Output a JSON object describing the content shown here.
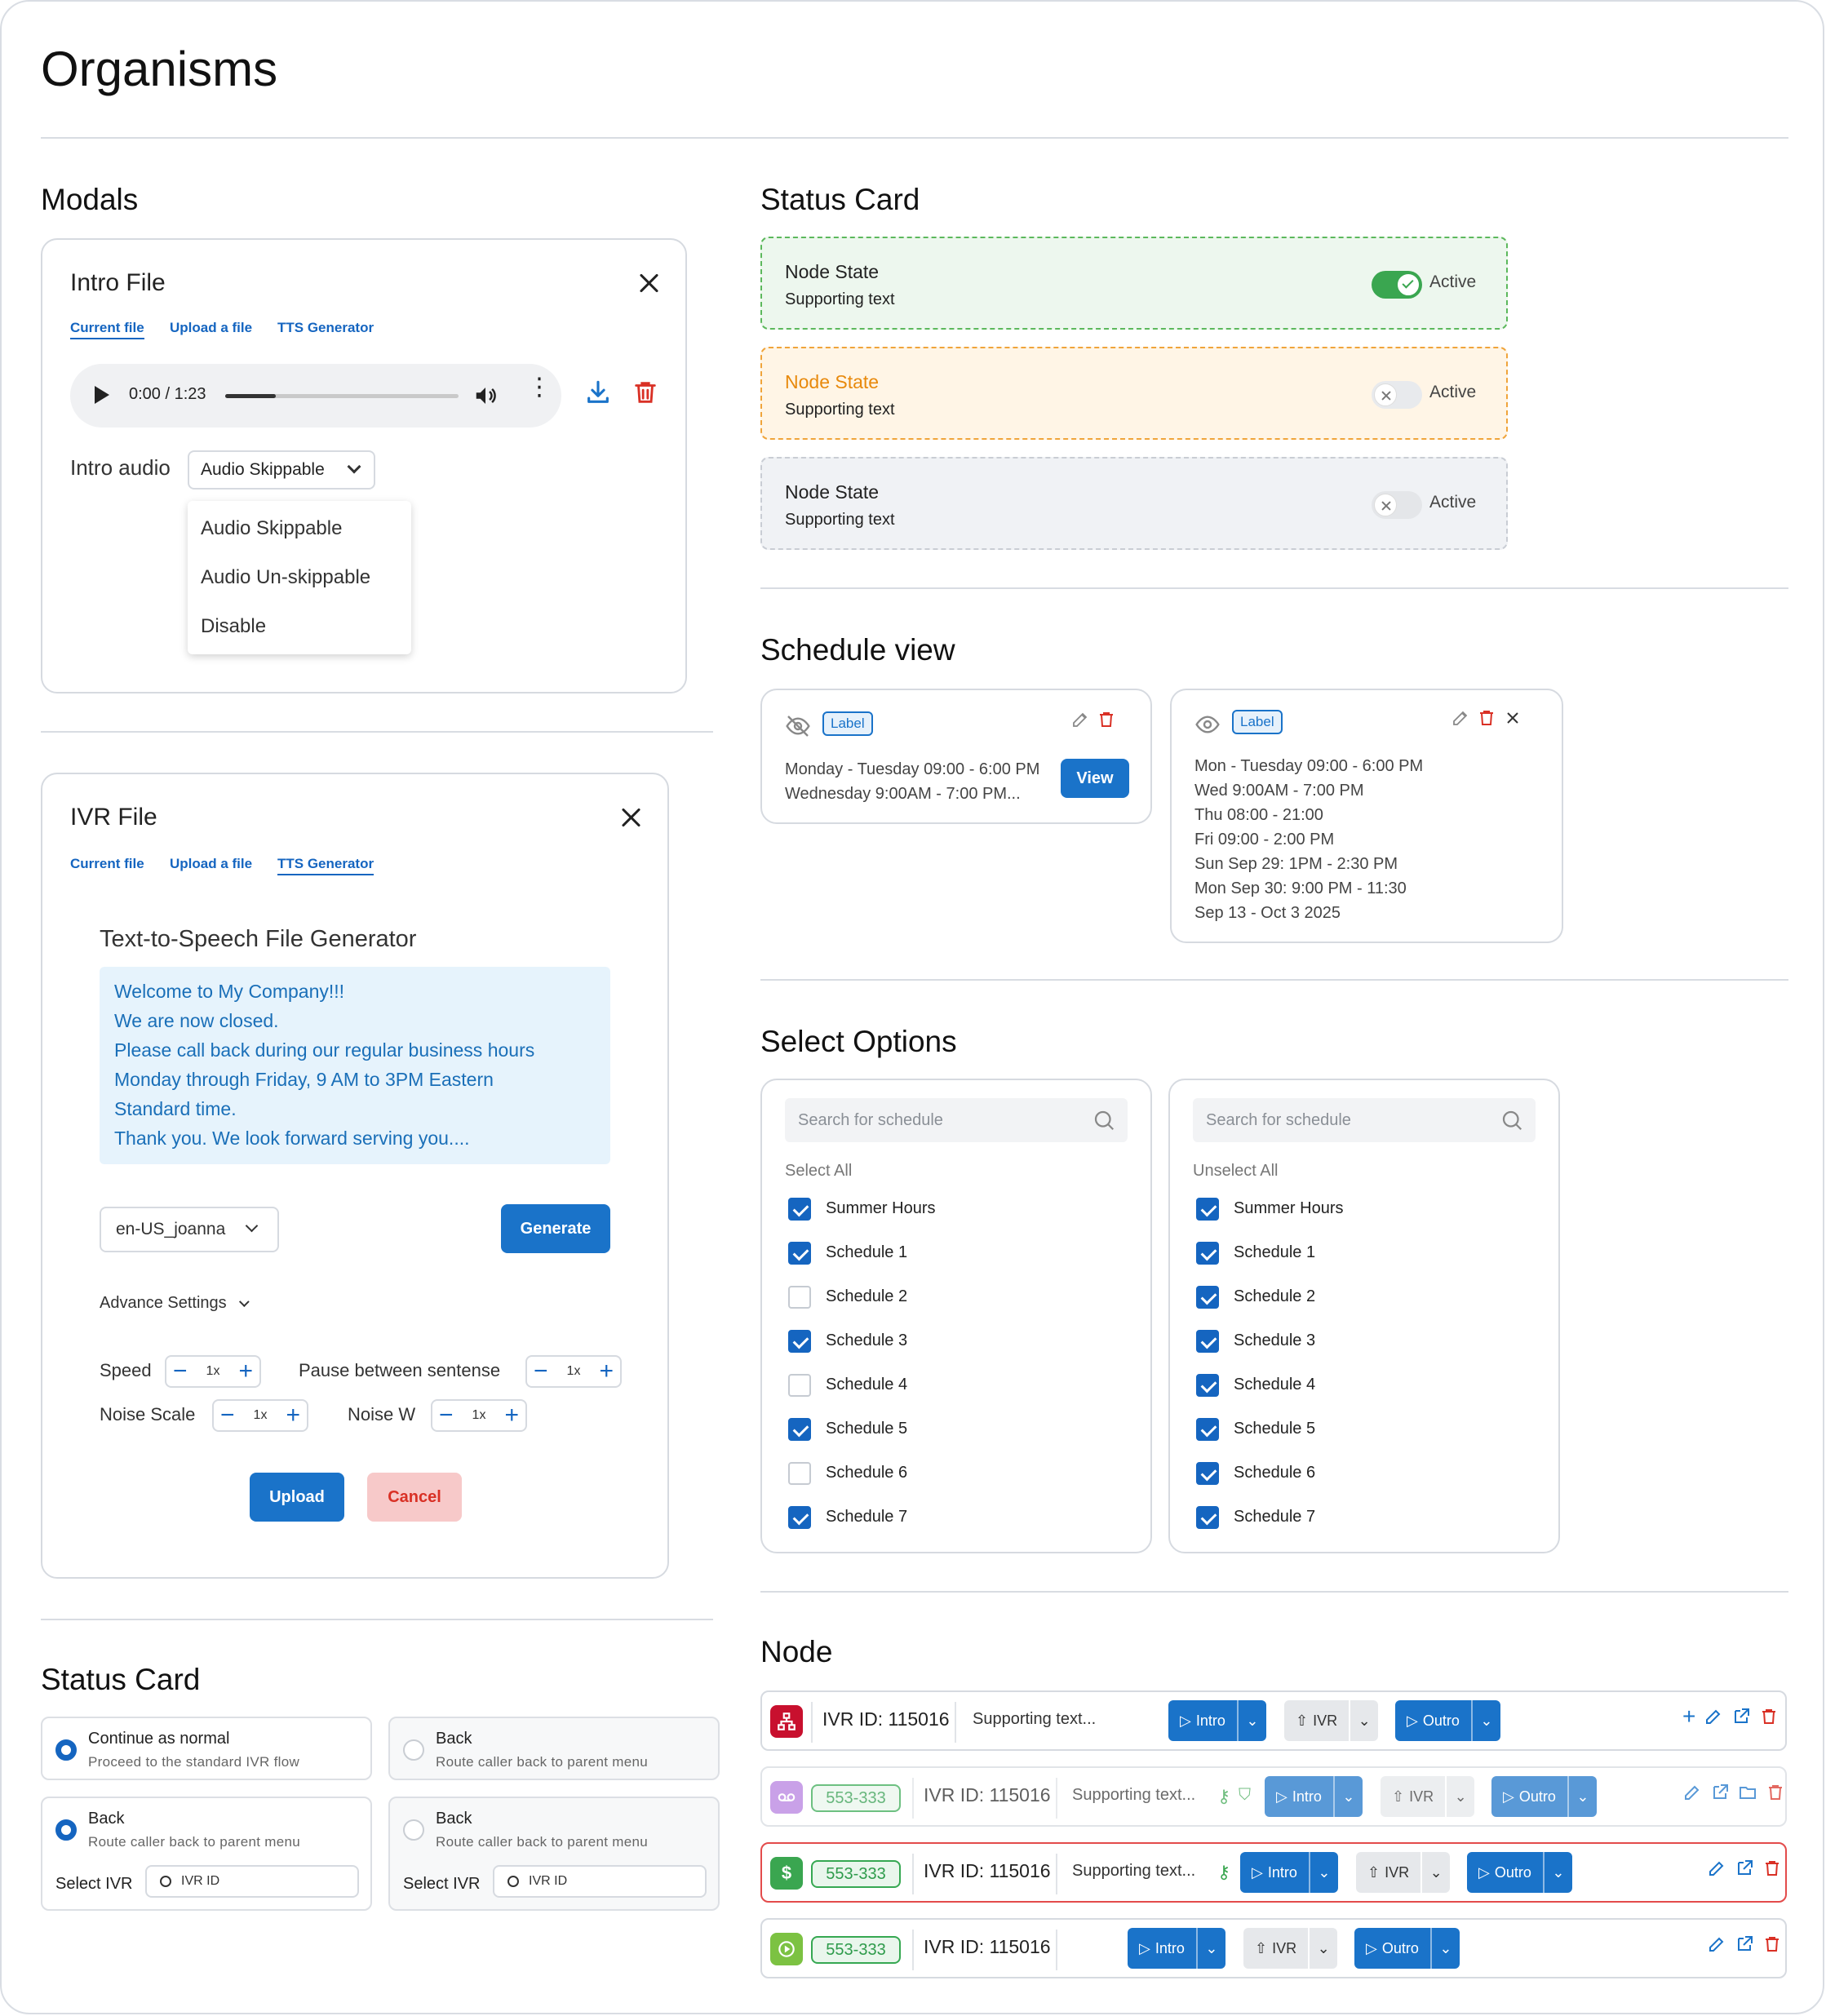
{
  "page_title": "Organisms",
  "sections": {
    "modals": "Modals",
    "status_card_right": "Status Card",
    "schedule_view": "Schedule view",
    "select_options": "Select Options",
    "status_card_left": "Status Card",
    "node": "Node"
  },
  "intro_modal": {
    "title": "Intro File",
    "tabs": [
      "Current file",
      "Upload a file",
      "TTS Generator"
    ],
    "audio_time": "0:00 / 1:23",
    "audio_label": "Intro audio",
    "audio_select": "Audio Skippable",
    "options": [
      "Audio Skippable",
      "Audio Un-skippable",
      "Disable"
    ]
  },
  "ivr_modal": {
    "title": "IVR File",
    "tabs": [
      "Current file",
      "Upload a file",
      "TTS Generator"
    ],
    "tts_title": "Text-to-Speech File Generator",
    "tts_lines": [
      "Welcome to My Company!!!",
      "We are now closed.",
      "Please call back during our regular business hours",
      "Monday through Friday, 9 AM to 3PM Eastern",
      "Standard time.",
      "Thank you. We look forward serving you...."
    ],
    "voice": "en-US_joanna",
    "generate": "Generate",
    "advance": "Advance Settings",
    "speed": "Speed",
    "pause": "Pause between sentense",
    "noise_scale": "Noise Scale",
    "noise_w": "Noise W",
    "step_value": "1x",
    "upload": "Upload",
    "cancel": "Cancel"
  },
  "status_cards": [
    {
      "title": "Node State",
      "sub": "Supporting text",
      "state": "Active",
      "on": true
    },
    {
      "title": "Node State",
      "sub": "Supporting text",
      "state": "Active",
      "on": false
    },
    {
      "title": "Node State",
      "sub": "Supporting text",
      "state": "Active",
      "on": false
    }
  ],
  "schedule": {
    "label": "Label",
    "card1_lines": [
      "Monday - Tuesday 09:00 - 6:00 PM",
      "Wednesday 9:00AM - 7:00 PM..."
    ],
    "view": "View",
    "card2_lines": [
      "Mon - Tuesday 09:00 - 6:00 PM",
      "Wed 9:00AM - 7:00 PM",
      "Thu 08:00 - 21:00",
      "Fri 09:00 - 2:00 PM",
      "Sun Sep 29: 1PM - 2:30 PM",
      "Mon Sep 30: 9:00 PM - 11:30",
      "Sep 13 - Oct 3 2025"
    ]
  },
  "select_options": {
    "placeholder": "Search for schedule",
    "select_all": "Select All",
    "unselect_all": "Unselect All",
    "items": [
      "Summer Hours",
      "Schedule 1",
      "Schedule 2",
      "Schedule 3",
      "Schedule 4",
      "Schedule 5",
      "Schedule 6",
      "Schedule 7"
    ],
    "left_checked": [
      true,
      true,
      false,
      true,
      false,
      true,
      false,
      true
    ],
    "right_checked": [
      true,
      true,
      true,
      true,
      true,
      true,
      true,
      true
    ]
  },
  "radio_cards": {
    "c1_title": "Continue as normal",
    "c1_sub": "Proceed to the standard IVR flow",
    "back": "Back",
    "back_sub": "Route caller back to parent menu",
    "select_ivr": "Select IVR",
    "ivr_placeholder": "IVR ID"
  },
  "nodes": {
    "ivr_id": "IVR ID: 115016",
    "sup1": "Supporting text...",
    "sup": "Supporting text...",
    "number": "553-333",
    "intro": "Intro",
    "ivr": "IVR",
    "outro": "Outro"
  }
}
